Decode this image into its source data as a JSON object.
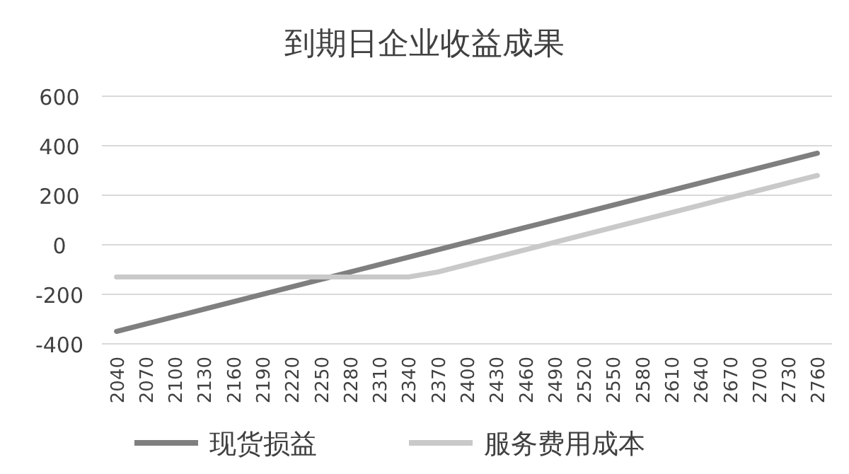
{
  "chart_data": {
    "type": "line",
    "title": "到期日企业收益成果",
    "categories": [
      "2040",
      "2070",
      "2100",
      "2130",
      "2160",
      "2190",
      "2220",
      "2250",
      "2280",
      "2310",
      "2340",
      "2370",
      "2400",
      "2430",
      "2460",
      "2490",
      "2520",
      "2550",
      "2580",
      "2610",
      "2640",
      "2670",
      "2700",
      "2730",
      "2760"
    ],
    "series": [
      {
        "name": "现货损益",
        "color": "#7f7f7f",
        "values": [
          -350,
          -320,
          -290,
          -260,
          -230,
          -200,
          -170,
          -140,
          -110,
          -80,
          -50,
          -20,
          10,
          40,
          70,
          100,
          130,
          160,
          190,
          220,
          250,
          280,
          310,
          340,
          370
        ]
      },
      {
        "name": "服务费用成本",
        "color": "#c9c9c9",
        "values": [
          -130,
          -130,
          -130,
          -130,
          -130,
          -130,
          -130,
          -130,
          -130,
          -130,
          -130,
          -110,
          -80,
          -50,
          -20,
          10,
          40,
          70,
          100,
          130,
          160,
          190,
          220,
          250,
          280
        ]
      }
    ],
    "ylim": [
      -400,
      600
    ],
    "yticks": [
      -400,
      -200,
      0,
      200,
      400,
      600
    ],
    "grid": "y",
    "legend": "bottom"
  }
}
